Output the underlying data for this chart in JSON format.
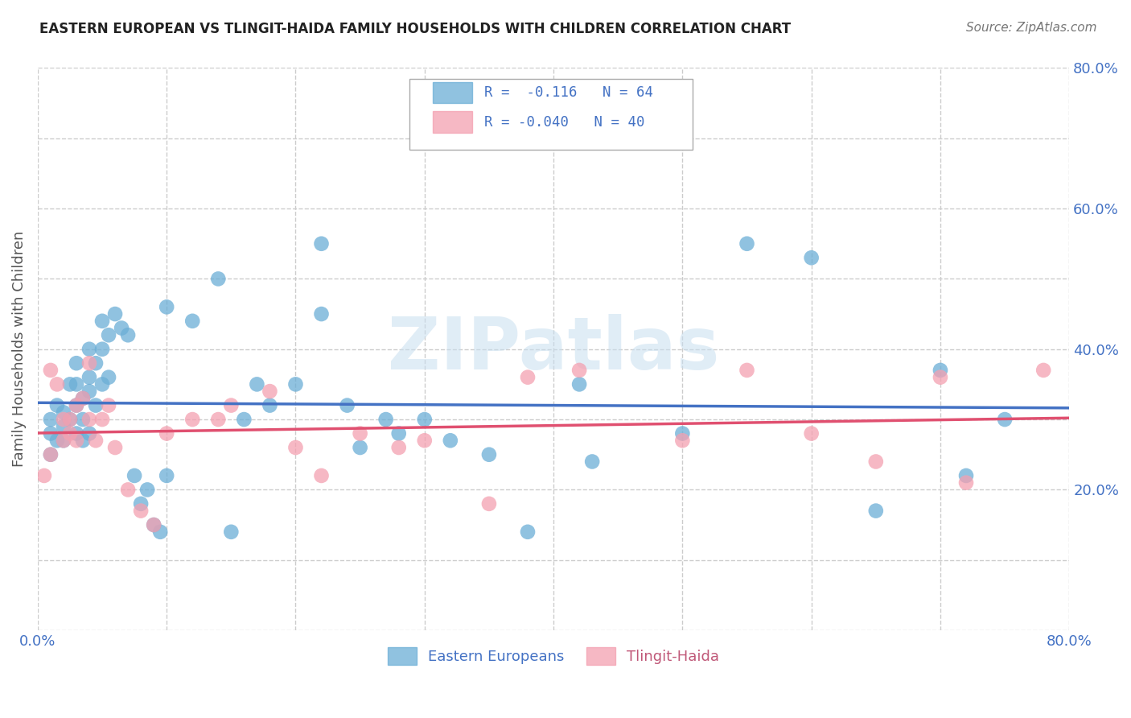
{
  "title": "EASTERN EUROPEAN VS TLINGIT-HAIDA FAMILY HOUSEHOLDS WITH CHILDREN CORRELATION CHART",
  "source": "Source: ZipAtlas.com",
  "ylabel": "Family Households with Children",
  "xlim": [
    0.0,
    0.8
  ],
  "ylim": [
    0.0,
    0.8
  ],
  "xticks": [
    0.0,
    0.1,
    0.2,
    0.3,
    0.4,
    0.5,
    0.6,
    0.7,
    0.8
  ],
  "xticklabels": [
    "0.0%",
    "",
    "",
    "",
    "",
    "",
    "",
    "",
    "80.0%"
  ],
  "yticks": [
    0.0,
    0.1,
    0.2,
    0.3,
    0.4,
    0.5,
    0.6,
    0.7,
    0.8
  ],
  "yticklabels": [
    "",
    "",
    "20.0%",
    "",
    "40.0%",
    "",
    "60.0%",
    "",
    "80.0%"
  ],
  "grid_color": "#cccccc",
  "blue_color": "#6baed6",
  "pink_color": "#f4a0b0",
  "line_blue": "#4472c4",
  "line_pink": "#e05070",
  "watermark": "ZIPatlas",
  "eastern_europeans_x": [
    0.01,
    0.01,
    0.01,
    0.015,
    0.015,
    0.02,
    0.02,
    0.02,
    0.025,
    0.025,
    0.03,
    0.03,
    0.03,
    0.03,
    0.035,
    0.035,
    0.035,
    0.04,
    0.04,
    0.04,
    0.04,
    0.045,
    0.045,
    0.05,
    0.05,
    0.05,
    0.055,
    0.055,
    0.06,
    0.065,
    0.07,
    0.075,
    0.08,
    0.085,
    0.09,
    0.095,
    0.1,
    0.1,
    0.12,
    0.14,
    0.15,
    0.16,
    0.17,
    0.18,
    0.2,
    0.22,
    0.22,
    0.24,
    0.25,
    0.27,
    0.28,
    0.3,
    0.32,
    0.35,
    0.38,
    0.42,
    0.43,
    0.5,
    0.55,
    0.6,
    0.65,
    0.7,
    0.72,
    0.75
  ],
  "eastern_europeans_y": [
    0.28,
    0.3,
    0.25,
    0.27,
    0.32,
    0.27,
    0.29,
    0.31,
    0.35,
    0.3,
    0.28,
    0.32,
    0.35,
    0.38,
    0.33,
    0.3,
    0.27,
    0.36,
    0.4,
    0.34,
    0.28,
    0.32,
    0.38,
    0.4,
    0.44,
    0.35,
    0.42,
    0.36,
    0.45,
    0.43,
    0.42,
    0.22,
    0.18,
    0.2,
    0.15,
    0.14,
    0.46,
    0.22,
    0.44,
    0.5,
    0.14,
    0.3,
    0.35,
    0.32,
    0.35,
    0.45,
    0.55,
    0.32,
    0.26,
    0.3,
    0.28,
    0.3,
    0.27,
    0.25,
    0.14,
    0.35,
    0.24,
    0.28,
    0.55,
    0.53,
    0.17,
    0.37,
    0.22,
    0.3
  ],
  "tlingit_haida_x": [
    0.005,
    0.01,
    0.01,
    0.015,
    0.02,
    0.02,
    0.025,
    0.025,
    0.03,
    0.03,
    0.035,
    0.04,
    0.04,
    0.045,
    0.05,
    0.055,
    0.06,
    0.07,
    0.08,
    0.09,
    0.1,
    0.12,
    0.14,
    0.15,
    0.18,
    0.2,
    0.22,
    0.25,
    0.28,
    0.3,
    0.35,
    0.38,
    0.42,
    0.5,
    0.55,
    0.6,
    0.65,
    0.7,
    0.72,
    0.78
  ],
  "tlingit_haida_y": [
    0.22,
    0.37,
    0.25,
    0.35,
    0.27,
    0.3,
    0.28,
    0.3,
    0.27,
    0.32,
    0.33,
    0.38,
    0.3,
    0.27,
    0.3,
    0.32,
    0.26,
    0.2,
    0.17,
    0.15,
    0.28,
    0.3,
    0.3,
    0.32,
    0.34,
    0.26,
    0.22,
    0.28,
    0.26,
    0.27,
    0.18,
    0.36,
    0.37,
    0.27,
    0.37,
    0.28,
    0.24,
    0.36,
    0.21,
    0.37
  ],
  "legend_label_blue": "Eastern Europeans",
  "legend_label_pink": "Tlingit-Haida",
  "legend_r1_text": "R =  -0.116   N = 64",
  "legend_r2_text": "R = -0.040   N = 40"
}
